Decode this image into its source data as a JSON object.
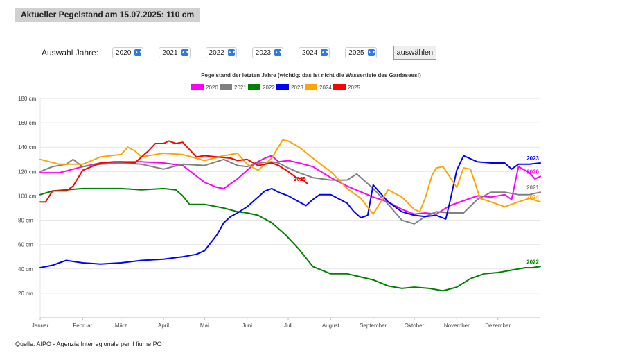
{
  "header": {
    "headline": "Aktueller Pegelstand am 15.07.2025: 110 cm"
  },
  "selector": {
    "label": "Auswahl Jahre:",
    "years": [
      "2020",
      "2021",
      "2022",
      "2023",
      "2024",
      "2025"
    ],
    "button_label": "auswählen"
  },
  "footer": {
    "source": "Quelle: AIPO - Agenzia Interregionale per il fiume PO"
  },
  "chart_data": {
    "type": "line",
    "title": "Pegelstand der letzten Jahre (wichtig: das ist nicht die Wassertiefe des Gardasees!)",
    "xlabel": "",
    "ylabel": "",
    "x_unit": "day of year",
    "month_labels": [
      "Januar",
      "Februar",
      "März",
      "April",
      "Mai",
      "Juni",
      "Juli",
      "August",
      "September",
      "Oktober",
      "November",
      "Dezember"
    ],
    "month_start_days": [
      1,
      32,
      60,
      91,
      121,
      152,
      182,
      213,
      244,
      274,
      305,
      335
    ],
    "xlim": [
      1,
      366
    ],
    "ylim": [
      0,
      180
    ],
    "yticks": [
      20,
      40,
      60,
      80,
      100,
      120,
      140,
      160,
      180
    ],
    "ytick_suffix": " cm",
    "grid": true,
    "legend_position": "top-center",
    "series": [
      {
        "name": "2020",
        "color": "#ff00ff",
        "end_label": "2020",
        "x": [
          1,
          15,
          32,
          45,
          60,
          75,
          91,
          105,
          121,
          130,
          135,
          145,
          152,
          158,
          165,
          170,
          175,
          182,
          190,
          200,
          213,
          225,
          244,
          255,
          265,
          274,
          282,
          290,
          300,
          310,
          320,
          330,
          340,
          345,
          350,
          358,
          362,
          366
        ],
        "y": [
          119,
          119,
          124,
          127,
          128,
          128,
          127,
          125,
          111,
          107,
          106,
          114,
          121,
          127,
          131,
          133,
          128,
          129,
          127,
          124,
          115,
          108,
          99,
          95,
          89,
          85,
          86,
          85,
          92,
          96,
          100,
          99,
          101,
          97,
          124,
          119,
          114,
          116
        ]
      },
      {
        "name": "2021",
        "color": "#808080",
        "end_label": "2021",
        "x": [
          1,
          10,
          20,
          25,
          32,
          45,
          60,
          75,
          91,
          105,
          121,
          135,
          145,
          152,
          160,
          170,
          175,
          182,
          190,
          200,
          213,
          225,
          232,
          244,
          255,
          265,
          274,
          282,
          290,
          300,
          310,
          320,
          330,
          340,
          350,
          358,
          366
        ],
        "y": [
          120,
          124,
          126,
          130,
          124,
          126,
          127,
          126,
          122,
          126,
          125,
          130,
          125,
          124,
          127,
          128,
          127,
          123,
          119,
          115,
          113,
          113,
          118,
          106,
          93,
          80,
          77,
          83,
          87,
          86,
          86,
          97,
          103,
          103,
          101,
          101,
          103
        ]
      },
      {
        "name": "2022",
        "color": "#008000",
        "end_label": "2022",
        "x": [
          1,
          10,
          20,
          32,
          45,
          60,
          75,
          91,
          100,
          105,
          110,
          121,
          135,
          145,
          152,
          160,
          170,
          180,
          190,
          200,
          213,
          225,
          244,
          255,
          265,
          274,
          285,
          295,
          305,
          315,
          325,
          335,
          345,
          355,
          360,
          366
        ],
        "y": [
          101,
          104,
          105,
          106,
          106,
          106,
          105,
          106,
          105,
          100,
          93,
          93,
          90,
          87,
          86,
          84,
          78,
          68,
          56,
          42,
          36,
          36,
          31,
          26,
          24,
          25,
          24,
          22,
          25,
          32,
          36,
          37,
          39,
          41,
          41,
          42
        ]
      },
      {
        "name": "2023",
        "color": "#0000ff",
        "end_label": "2023",
        "x": [
          1,
          10,
          20,
          32,
          45,
          60,
          75,
          91,
          105,
          115,
          121,
          130,
          135,
          140,
          145,
          152,
          160,
          165,
          170,
          175,
          182,
          190,
          195,
          200,
          205,
          213,
          225,
          230,
          235,
          240,
          244,
          255,
          265,
          274,
          282,
          290,
          297,
          300,
          305,
          310,
          320,
          330,
          340,
          345,
          350,
          358,
          366
        ],
        "y": [
          41,
          43,
          47,
          45,
          44,
          45,
          47,
          48,
          50,
          52,
          55,
          68,
          78,
          83,
          86,
          91,
          99,
          104,
          106,
          103,
          100,
          95,
          92,
          97,
          101,
          101,
          94,
          87,
          82,
          84,
          109,
          95,
          87,
          84,
          83,
          84,
          81,
          95,
          121,
          133,
          128,
          127,
          127,
          122,
          126,
          126,
          127
        ]
      },
      {
        "name": "2024",
        "color": "#ffa500",
        "end_label": "2024",
        "x": [
          1,
          15,
          32,
          45,
          60,
          65,
          70,
          75,
          85,
          91,
          105,
          121,
          135,
          145,
          152,
          160,
          170,
          178,
          182,
          190,
          200,
          208,
          213,
          225,
          235,
          244,
          255,
          265,
          274,
          278,
          282,
          287,
          290,
          295,
          305,
          310,
          315,
          322,
          330,
          340,
          350,
          358,
          366
        ],
        "y": [
          130,
          126,
          126,
          132,
          134,
          140,
          137,
          132,
          134,
          135,
          134,
          129,
          133,
          135,
          126,
          121,
          131,
          146,
          145,
          140,
          131,
          124,
          120,
          106,
          98,
          85,
          105,
          99,
          89,
          87,
          98,
          117,
          123,
          124,
          107,
          123,
          122,
          98,
          95,
          91,
          95,
          98,
          95
        ]
      },
      {
        "name": "2025",
        "color": "#ff0000",
        "end_label": "2025",
        "x": [
          1,
          5,
          10,
          20,
          25,
          32,
          45,
          55,
          60,
          70,
          75,
          80,
          85,
          91,
          95,
          100,
          105,
          110,
          115,
          121,
          130,
          140,
          145,
          152,
          160,
          170,
          175,
          182,
          188,
          192,
          196
        ],
        "y": [
          95,
          95,
          104,
          104,
          108,
          121,
          127,
          128,
          128,
          127,
          132,
          137,
          143,
          143,
          145,
          143,
          144,
          138,
          132,
          133,
          132,
          131,
          129,
          130,
          125,
          127,
          125,
          120,
          115,
          114,
          110
        ]
      }
    ]
  }
}
